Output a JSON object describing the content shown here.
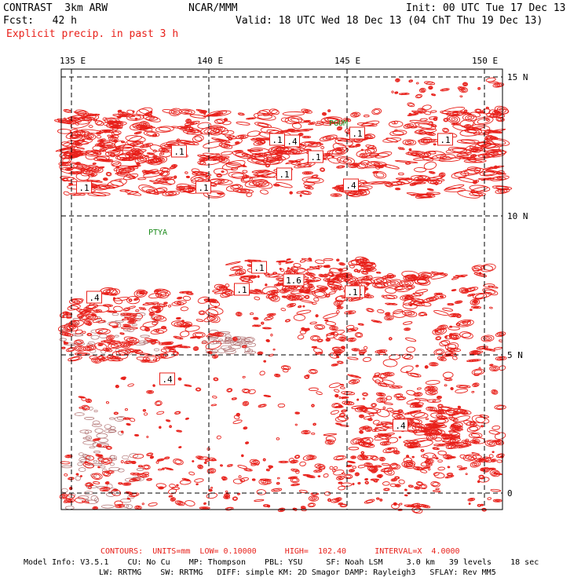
{
  "header": {
    "model": "CONTRAST  3km ARW",
    "org": "NCAR/MMM",
    "init": "Init: 00 UTC Tue 17 Dec 13",
    "fcst": "Fcst:   42 h",
    "valid": "Valid: 18 UTC Wed 18 Dec 13 (04 ChT Thu 19 Dec 13)",
    "field": "Explicit precip. in past 3 h"
  },
  "map": {
    "lon_labels": [
      "135 E",
      "140 E",
      "145 E",
      "150 E"
    ],
    "lat_labels": [
      "15 N",
      "10 N",
      "5 N",
      "0"
    ],
    "stations": [
      "PGUM",
      "PTYA"
    ],
    "contour_labels": [
      ".1",
      ".1",
      ".4",
      ".1",
      ".1",
      ".1",
      ".1",
      ".4",
      ".1",
      ".1",
      ".1",
      ".1",
      "1.6",
      ".1",
      ".4",
      ".4",
      ".4",
      ".1"
    ],
    "colors": {
      "contour": "#e8201a",
      "shade": "#b07070",
      "station": "#1a8a1a"
    }
  },
  "footer": {
    "contours": "CONTOURS:  UNITS=mm  LOW= 0.10000      HIGH=  102.40      INTERVAL=X  4.0000",
    "model_info_1": "Model Info: V3.5.1    CU: No Cu    MP: Thompson    PBL: YSU     SF: Noah LSM     3.0 km   39 levels    18 sec",
    "model_info_2": "LW: RRTMG    SW: RRTMG   DIFF: simple KM: 2D Smagor DAMP: Rayleigh3   SFLAY: Rev MM5"
  }
}
